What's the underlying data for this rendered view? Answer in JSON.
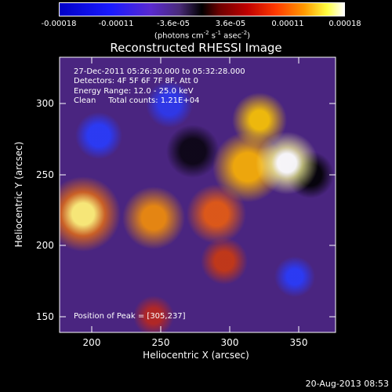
{
  "colorbar": {
    "ticks": [
      "-0.00018",
      "-0.00011",
      "-3.6e-05",
      "3.6e-05",
      "0.00011",
      "0.00018"
    ],
    "units_main": "(photons cm",
    "units_sup1": "-2",
    "units_mid": " s",
    "units_sup2": "-1",
    "units_end": " asec",
    "units_sup3": "-2",
    "units_close": ")"
  },
  "title": "Reconstructed RHESSI Image",
  "overlay": {
    "time": "27-Dec-2011 05:26:30.000 to 05:32:28.000",
    "detectors": "Detectors: 4F 5F 6F 7F 8F, Att 0",
    "energy": "Energy Range: 12.0 - 25.0 keV",
    "method": "Clean     Total counts: 1.21E+04"
  },
  "peak": "Position of Peak = [305,237]",
  "axes": {
    "xlabel": "Heliocentric X (arcsec)",
    "ylabel": "Heliocentric Y (arcsec)",
    "xticks": [
      "200",
      "250",
      "300",
      "350"
    ],
    "yticks": [
      "300",
      "250",
      "200",
      "150"
    ]
  },
  "footer": "20-Aug-2013 08:53"
}
